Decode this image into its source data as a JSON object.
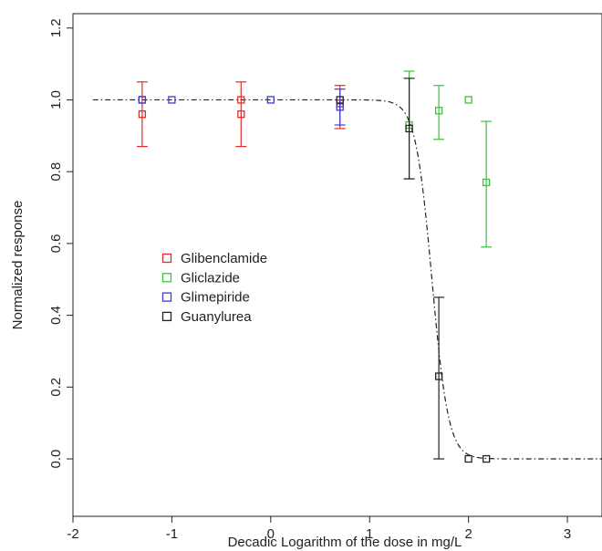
{
  "chart_data": {
    "type": "scatter",
    "xlabel": "Decadic Logarithm of the dose in  mg/L",
    "ylabel": "Normalized response",
    "xlim": [
      -2,
      3.35
    ],
    "ylim": [
      -0.16,
      1.24
    ],
    "x_ticks": [
      "-2",
      "-1",
      "0",
      "1",
      "2",
      "3"
    ],
    "y_ticks": [
      "0.0",
      "0.2",
      "0.4",
      "0.6",
      "0.8",
      "1.0",
      "1.2"
    ],
    "grid": false,
    "legend_placement": "center-left",
    "series": [
      {
        "name": "Glibenclamide",
        "color": "#e32b2b",
        "points": [
          {
            "x": -1.3,
            "y": 1.0
          },
          {
            "x": -1.3,
            "y": 0.96,
            "err_low": 0.87,
            "err_high": 1.05
          },
          {
            "x": -0.3,
            "y": 1.0
          },
          {
            "x": -0.3,
            "y": 0.96,
            "err_low": 0.87,
            "err_high": 1.05
          },
          {
            "x": 0.7,
            "y": 0.99,
            "err_low": 0.92,
            "err_high": 1.04
          }
        ]
      },
      {
        "name": "Gliclazide",
        "color": "#3cc23c",
        "points": [
          {
            "x": 1.4,
            "y": 0.93,
            "err_low": 0.78,
            "err_high": 1.08
          },
          {
            "x": 1.7,
            "y": 0.97,
            "err_low": 0.89,
            "err_high": 1.04
          },
          {
            "x": 2.0,
            "y": 1.0
          },
          {
            "x": 2.18,
            "y": 0.77,
            "err_low": 0.59,
            "err_high": 0.94
          }
        ]
      },
      {
        "name": "Glimepiride",
        "color": "#3b3bd6",
        "points": [
          {
            "x": -1.3,
            "y": 1.0
          },
          {
            "x": -1.0,
            "y": 1.0
          },
          {
            "x": 0.0,
            "y": 1.0
          },
          {
            "x": 0.7,
            "y": 0.98,
            "err_low": 0.93,
            "err_high": 1.03
          }
        ]
      },
      {
        "name": "Guanylurea",
        "color": "#222222",
        "points": [
          {
            "x": 0.7,
            "y": 1.0
          },
          {
            "x": 1.4,
            "y": 0.92,
            "err_low": 0.78,
            "err_high": 1.06
          },
          {
            "x": 1.7,
            "y": 0.23,
            "err_low": 0.0,
            "err_high": 0.45
          },
          {
            "x": 2.0,
            "y": 0.0
          },
          {
            "x": 2.18,
            "y": 0.0
          }
        ]
      }
    ],
    "fit_curve": {
      "style": "dash-dot",
      "color": "#222222",
      "model": "log-logistic",
      "top": 1.0,
      "bottom": 0.0,
      "log_ec50": 1.63,
      "slope": 12,
      "x_range": [
        -1.8,
        3.35
      ]
    }
  }
}
